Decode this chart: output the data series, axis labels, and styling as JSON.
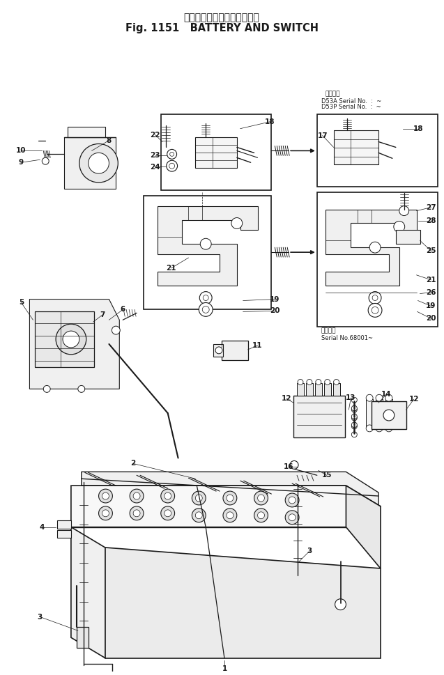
{
  "title_japanese": "バッテリ　および　スイッチ",
  "title_english": "Fig. 1151   BATTERY AND SWITCH",
  "bg_color": "#ffffff",
  "line_color": "#1a1a1a",
  "fig_width": 6.37,
  "fig_height": 9.69,
  "serial_note_1": "適用号機",
  "serial_note_2": "D53A Serial No.  :  ~",
  "serial_note_3": "D53P Serial No.  :  ~",
  "serial_note_4": "適用号機",
  "serial_note_5": "Serial No.68001~"
}
